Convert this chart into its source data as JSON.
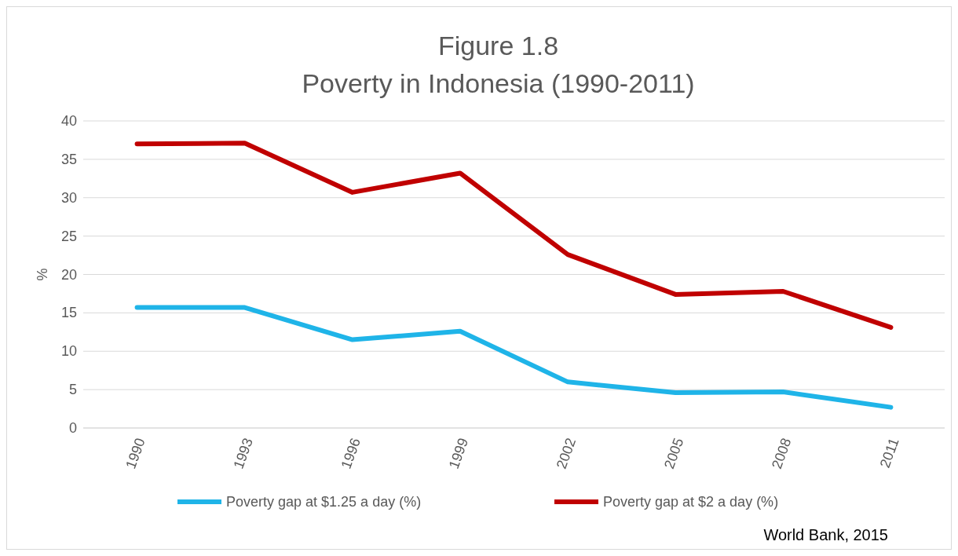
{
  "chart_data": {
    "type": "line",
    "title": "Figure 1.8",
    "subtitle": "Poverty in Indonesia (1990-2011)",
    "ylabel": "%",
    "categories": [
      "1990",
      "1993",
      "1996",
      "1999",
      "2002",
      "2005",
      "2008",
      "2011"
    ],
    "series": [
      {
        "name": "Poverty gap at $1.25 a day (%)",
        "color": "#1fb4e8",
        "values": [
          15.7,
          15.7,
          11.5,
          12.6,
          6.0,
          4.6,
          4.7,
          2.7
        ]
      },
      {
        "name": "Poverty gap at $2 a day (%)",
        "color": "#c00000",
        "values": [
          37.0,
          37.1,
          30.7,
          33.2,
          22.6,
          17.4,
          17.8,
          13.1
        ]
      }
    ],
    "ylim": [
      0,
      40
    ],
    "yticks": [
      0,
      5,
      10,
      15,
      20,
      25,
      30,
      35,
      40
    ],
    "grid": "y",
    "legend": "bottom",
    "marker": "none",
    "line_style": "solid",
    "annotations": [
      "World Bank, 2015"
    ]
  }
}
